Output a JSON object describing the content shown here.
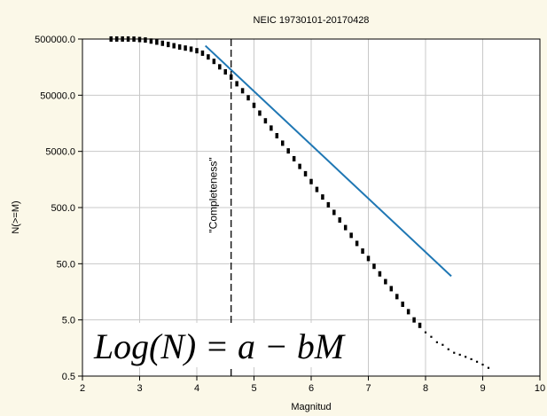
{
  "chart_data": {
    "type": "scatter",
    "title": "NEIC 19730101-20170428",
    "xlabel": "Magnitud",
    "ylabel": "N(>=M)",
    "xlim": [
      2,
      10
    ],
    "ylim": [
      0.5,
      500000
    ],
    "yscale": "log",
    "grid": true,
    "x_ticks": [
      2,
      3,
      4,
      5,
      6,
      7,
      8,
      9,
      10
    ],
    "y_ticks": [
      0.5,
      5.0,
      50.0,
      500.0,
      5000.0,
      50000.0,
      500000.0
    ],
    "x_tick_labels": [
      "2",
      "3",
      "4",
      "5",
      "6",
      "7",
      "8",
      "9",
      "10"
    ],
    "y_tick_labels": [
      "0.5",
      "5.0",
      "50.0",
      "500.0",
      "5000.0",
      "50000.0",
      "500000.0"
    ],
    "series": [
      {
        "kind": "points",
        "color": "#000000",
        "x": [
          2.5,
          2.6,
          2.7,
          2.8,
          2.9,
          3.0,
          3.1,
          3.2,
          3.3,
          3.4,
          3.5,
          3.6,
          3.7,
          3.8,
          3.9,
          4.0,
          4.1,
          4.2,
          4.3,
          4.4,
          4.5,
          4.6,
          4.7,
          4.8,
          4.9,
          5.0,
          5.1,
          5.2,
          5.3,
          5.4,
          5.5,
          5.6,
          5.7,
          5.8,
          5.9,
          6.0,
          6.1,
          6.2,
          6.3,
          6.4,
          6.5,
          6.6,
          6.7,
          6.8,
          6.9,
          7.0,
          7.1,
          7.2,
          7.3,
          7.4,
          7.5,
          7.6,
          7.7,
          7.8,
          7.9,
          8.0,
          8.1,
          8.2,
          8.3,
          8.4,
          8.5,
          8.6,
          8.7,
          8.8,
          8.9,
          9.0,
          9.1
        ],
        "y": [
          500000,
          500000,
          500000,
          500000,
          498000,
          490000,
          480000,
          460000,
          440000,
          420000,
          400000,
          380000,
          360000,
          345000,
          330000,
          310000,
          280000,
          240000,
          200000,
          160000,
          130000,
          105000,
          80000,
          60000,
          45000,
          33000,
          24000,
          17500,
          13000,
          9500,
          7000,
          5100,
          3700,
          2700,
          2000,
          1450,
          1050,
          770,
          560,
          410,
          300,
          220,
          160,
          115,
          84,
          62,
          45,
          33,
          24,
          18,
          13,
          9.5,
          7,
          5,
          4,
          3,
          2.5,
          2,
          1.8,
          1.5,
          1.3,
          1.2,
          1.1,
          1.0,
          0.9,
          0.8,
          0.7
        ]
      },
      {
        "kind": "line",
        "color": "#1f77b4",
        "x": [
          4.15,
          8.45
        ],
        "y": [
          380000,
          30
        ]
      }
    ],
    "annotations": [
      {
        "type": "vline",
        "x": 4.6,
        "style": "dashed",
        "text": "\"Completeness\""
      },
      {
        "type": "formula",
        "text_parts": [
          "Log",
          "(",
          "N",
          ")",
          " = ",
          "a",
          " − ",
          "b",
          "M"
        ],
        "text": "Log(N) = a − bM"
      }
    ]
  }
}
